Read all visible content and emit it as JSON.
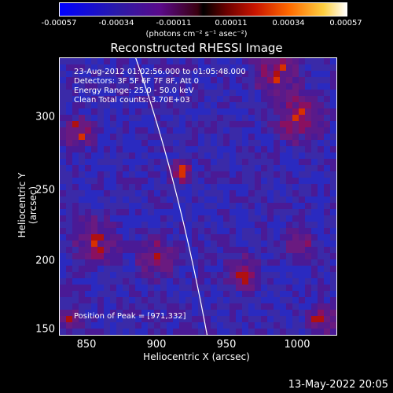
{
  "colorbar": {
    "ticks": [
      "-0.00057",
      "-0.00034",
      "-0.00011",
      "0.00011",
      "0.00034",
      "0.00057"
    ],
    "unit": "(photons cm⁻² s⁻¹ asec⁻²)"
  },
  "title": "Reconstructed RHESSI Image",
  "info": {
    "time": "23-Aug-2012 01:02:56.000 to 01:05:48.000",
    "detectors": "Detectors: 3F 5F 6F 7F 8F, Att 0",
    "energy": "Energy Range: 25.0 - 50.0 keV",
    "clean": "Clean     Total counts: 3.70E+03",
    "peak": "Position of Peak = [971,332]"
  },
  "axes": {
    "y_ticks": [
      "300",
      "250",
      "200",
      "150"
    ],
    "x_ticks": [
      "850",
      "900",
      "950",
      "1000"
    ],
    "ylabel": "Heliocentric Y (arcsec)",
    "xlabel": "Heliocentric X (arcsec)"
  },
  "timestamp": "13-May-2022 20:05",
  "colors": {
    "low": "#0000ff",
    "mid": "#000000",
    "high": "#ffffff"
  }
}
